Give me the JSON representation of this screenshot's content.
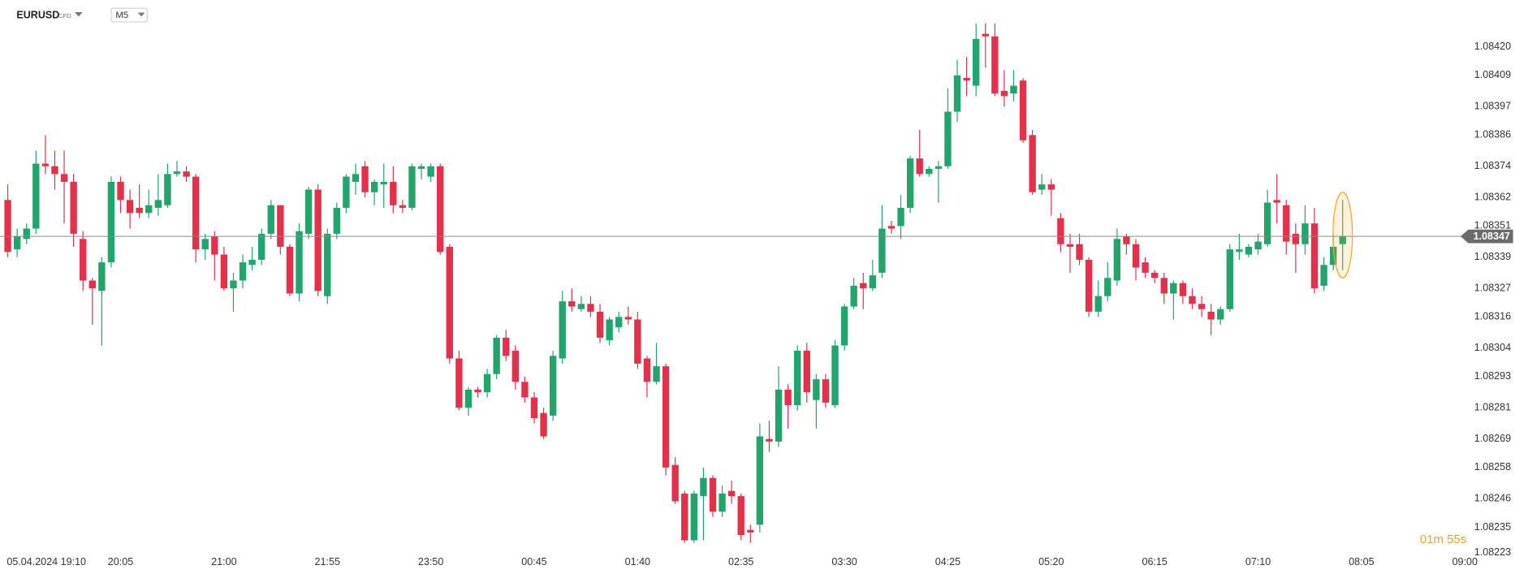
{
  "chart_data": {
    "type": "candlestick",
    "symbol": "EURUSD",
    "instrument_type": "CFD",
    "timeframe": "M5",
    "countdown": "01m 55s",
    "current_price": 1.08347,
    "up_color": "#22a56d",
    "down_color": "#e5304b",
    "ylim": [
      1.08223,
      1.08438
    ],
    "yticks": [
      {
        "value": 1.0842,
        "label": "1.08420"
      },
      1.08409,
      1.08397,
      1.08386,
      1.08374,
      1.08362,
      1.08351,
      1.08339,
      1.08327,
      1.08316,
      1.08304,
      1.08293,
      1.08281,
      1.08269,
      1.08258,
      1.08246,
      1.08235,
      1.08223
    ],
    "categories": [
      null,
      "05.04.2024 19:10",
      null,
      null,
      null,
      null,
      null,
      null,
      null,
      null,
      null,
      null,
      "20:05",
      null,
      null,
      null,
      null,
      null,
      null,
      null,
      null,
      null,
      null,
      "21:00",
      null,
      null,
      null,
      null,
      null,
      null,
      null,
      null,
      null,
      null,
      "21:55",
      null,
      null,
      null,
      null,
      null,
      null,
      null,
      null,
      null,
      null,
      "23:50",
      null,
      null,
      null,
      null,
      null,
      null,
      null,
      null,
      null,
      null,
      "00:45",
      null,
      null,
      null,
      null,
      null,
      null,
      null,
      null,
      null,
      null,
      "01:40",
      null,
      null,
      null,
      null,
      null,
      null,
      null,
      null,
      null,
      null,
      "02:35",
      null,
      null,
      null,
      null,
      null,
      null,
      null,
      null,
      null,
      null,
      "03:30",
      null,
      null,
      null,
      null,
      null,
      null,
      null,
      null,
      null,
      null,
      "04:25",
      null,
      null,
      null,
      null,
      null,
      null,
      null,
      null,
      null,
      null,
      "05:20",
      null,
      null,
      null,
      null,
      null,
      null,
      null,
      null,
      null,
      null,
      "06:15",
      null,
      null,
      null,
      null,
      null,
      null,
      null,
      null,
      null,
      null,
      "07:10",
      null,
      null,
      null,
      null,
      null,
      null,
      null,
      null,
      null,
      null,
      "08:05",
      null,
      null,
      null,
      null,
      null,
      null,
      null,
      null,
      null,
      null,
      "09:00"
    ],
    "open": [
      1.08361,
      1.08342,
      1.08346,
      1.0835,
      1.08375,
      1.08374,
      1.08371,
      1.08368,
      1.08346,
      1.0833,
      1.08326,
      1.08337,
      1.08368,
      1.08361,
      1.08358,
      1.08356,
      1.08358,
      1.08359,
      1.08371,
      1.08372,
      1.0837,
      1.08342,
      1.08347,
      1.0834,
      1.08327,
      1.0833,
      1.08336,
      1.08338,
      1.08348,
      1.08359,
      1.08343,
      1.08325,
      1.08348,
      1.08365,
      1.08324,
      1.08348,
      1.08358,
      1.08368,
      1.08374,
      1.08364,
      1.08367,
      1.08368,
      1.08359,
      1.08358,
      1.08373,
      1.0837,
      1.08374,
      1.08343,
      1.083,
      1.08281,
      1.08288,
      1.08287,
      1.08294,
      1.08308,
      1.08303,
      1.08291,
      1.08285,
      1.08279,
      1.08278,
      1.083,
      1.08322,
      1.08319,
      1.08321,
      1.08318,
      1.08307,
      1.08312,
      1.08316,
      1.08315,
      1.083,
      1.08291,
      1.08297,
      1.08259,
      1.08248,
      1.0823,
      1.08247,
      1.08254,
      1.08241,
      1.08249,
      1.08247,
      1.08234,
      1.08236,
      1.08269,
      1.08268,
      1.08288,
      1.08282,
      1.08303,
      1.08284,
      1.08292,
      1.08282,
      1.08305,
      1.0832,
      1.08329,
      1.08327,
      1.08333,
      1.08351,
      1.08351,
      1.08358,
      1.08377,
      1.08371,
      1.08373,
      1.08374,
      1.08395,
      1.08408,
      1.08405,
      1.08425,
      1.08424,
      1.08403,
      1.08402,
      1.08407,
      1.08386,
      1.08365,
      1.08367,
      1.08354,
      1.08344,
      1.08344,
      1.08338,
      1.08318,
      1.08324,
      1.0833,
      1.08347,
      1.08344,
      1.08337,
      1.08333,
      1.08331,
      1.08325,
      1.08329,
      1.08324,
      1.08321,
      1.08318,
      1.08315,
      1.08319,
      1.08341,
      1.0834,
      1.08342,
      1.08344,
      1.08361,
      1.08359,
      1.08348,
      1.08344,
      1.08352,
      1.08328,
      1.08336,
      1.08344,
      null,
      null,
      null,
      null,
      null,
      null,
      null,
      null,
      null,
      null,
      null,
      null,
      null
    ],
    "high": [
      1.08367,
      1.0835,
      1.08352,
      1.0838,
      1.08386,
      1.0838,
      1.0838,
      1.08371,
      1.08349,
      1.08331,
      1.08339,
      1.0837,
      1.0837,
      1.08365,
      1.08367,
      1.08365,
      1.08371,
      1.08375,
      1.08376,
      1.08374,
      1.08371,
      1.08348,
      1.08349,
      1.08343,
      1.08333,
      1.0834,
      1.08343,
      1.0835,
      1.08361,
      1.08359,
      1.08344,
      1.08352,
      1.08366,
      1.08367,
      1.0835,
      1.0836,
      1.08371,
      1.08375,
      1.08376,
      1.08369,
      1.08375,
      1.08374,
      1.08361,
      1.08375,
      1.08375,
      1.08375,
      1.08375,
      1.08344,
      1.08303,
      1.08289,
      1.08289,
      1.08296,
      1.08309,
      1.08311,
      1.08305,
      1.08293,
      1.08287,
      1.08281,
      1.08303,
      1.08326,
      1.08327,
      1.08324,
      1.08324,
      1.08321,
      1.08316,
      1.08318,
      1.0832,
      1.08318,
      1.08301,
      1.08306,
      1.08298,
      1.08262,
      1.08249,
      1.08249,
      1.08258,
      1.08255,
      1.08251,
      1.08253,
      1.08248,
      1.08236,
      1.08275,
      1.08276,
      1.08297,
      1.0829,
      1.08305,
      1.08306,
      1.08294,
      1.08294,
      1.08307,
      1.08321,
      1.08331,
      1.08333,
      1.08338,
      1.08359,
      1.08353,
      1.08363,
      1.08378,
      1.08388,
      1.08374,
      1.08376,
      1.08404,
      1.08415,
      1.08416,
      1.08429,
      1.08429,
      1.08429,
      1.08411,
      1.08411,
      1.08408,
      1.08388,
      1.08371,
      1.08369,
      1.08356,
      1.08348,
      1.08348,
      1.08339,
      1.0833,
      1.08337,
      1.0835,
      1.08348,
      1.08346,
      1.08339,
      1.08334,
      1.08333,
      1.0833,
      1.0833,
      1.08327,
      1.08324,
      1.08321,
      1.0832,
      1.08344,
      1.08348,
      1.08344,
      1.08348,
      1.08365,
      1.08371,
      1.08361,
      1.08352,
      1.08359,
      1.08358,
      1.08339,
      1.08348,
      1.08361,
      null,
      null,
      null,
      null,
      null,
      null,
      null,
      null,
      null,
      null,
      null,
      null,
      null
    ],
    "low": [
      1.08339,
      1.08339,
      1.08344,
      1.08348,
      1.08371,
      1.08365,
      1.08352,
      1.08343,
      1.08326,
      1.08313,
      1.08305,
      1.08335,
      1.08356,
      1.0835,
      1.08354,
      1.08354,
      1.08355,
      1.08358,
      1.0837,
      1.08368,
      1.08337,
      1.08338,
      1.0833,
      1.08326,
      1.08318,
      1.08327,
      1.08334,
      1.08336,
      1.08346,
      1.0834,
      1.08324,
      1.08322,
      1.08346,
      1.08324,
      1.08321,
      1.08346,
      1.08356,
      1.08363,
      1.08362,
      1.08359,
      1.08358,
      1.08356,
      1.08356,
      1.08357,
      1.08369,
      1.08368,
      1.0834,
      1.08298,
      1.0828,
      1.08278,
      1.08285,
      1.08285,
      1.08292,
      1.08299,
      1.08288,
      1.08283,
      1.08275,
      1.08269,
      1.08276,
      1.08298,
      1.08318,
      1.08318,
      1.08316,
      1.08306,
      1.08305,
      1.0831,
      1.08313,
      1.08296,
      1.08285,
      1.0829,
      1.08255,
      1.08244,
      1.08229,
      1.08229,
      1.0823,
      1.08239,
      1.08239,
      1.08244,
      1.0823,
      1.08229,
      1.08233,
      1.08264,
      1.08266,
      1.08273,
      1.0828,
      1.08283,
      1.08273,
      1.08281,
      1.08281,
      1.08303,
      1.08319,
      1.08319,
      1.08326,
      1.08331,
      1.08348,
      1.08346,
      1.08356,
      1.0837,
      1.0837,
      1.0836,
      1.08373,
      1.08391,
      1.08401,
      1.08401,
      1.08412,
      1.08401,
      1.08397,
      1.08399,
      1.08383,
      1.08363,
      1.08363,
      1.08355,
      1.08341,
      1.08333,
      1.08336,
      1.08316,
      1.08316,
      1.08322,
      1.08328,
      1.0834,
      1.0833,
      1.08331,
      1.08329,
      1.08321,
      1.08315,
      1.08321,
      1.08319,
      1.08316,
      1.08309,
      1.08313,
      1.08318,
      1.08338,
      1.08339,
      1.0834,
      1.08343,
      1.08352,
      1.0834,
      1.08333,
      1.0834,
      1.08325,
      1.08326,
      1.08334,
      1.08334,
      null,
      null,
      null,
      null,
      null,
      null,
      null,
      null,
      null,
      null,
      null,
      null,
      null
    ],
    "close": [
      1.08341,
      1.08347,
      1.0835,
      1.08375,
      1.08374,
      1.08371,
      1.08368,
      1.08348,
      1.0833,
      1.08327,
      1.08337,
      1.08368,
      1.08361,
      1.08356,
      1.08356,
      1.08359,
      1.08361,
      1.08371,
      1.08372,
      1.0837,
      1.08342,
      1.08346,
      1.0834,
      1.08327,
      1.0833,
      1.08337,
      1.08338,
      1.08348,
      1.08359,
      1.08343,
      1.08325,
      1.08349,
      1.08365,
      1.08326,
      1.08348,
      1.08358,
      1.0837,
      1.08371,
      1.08364,
      1.08368,
      1.08368,
      1.08359,
      1.08358,
      1.08374,
      1.08374,
      1.08374,
      1.08341,
      1.083,
      1.08281,
      1.08288,
      1.08287,
      1.08294,
      1.08308,
      1.08301,
      1.08291,
      1.08285,
      1.08277,
      1.0827,
      1.08301,
      1.08322,
      1.0832,
      1.08321,
      1.08318,
      1.08308,
      1.08315,
      1.08316,
      1.08315,
      1.08298,
      1.08291,
      1.08297,
      1.08258,
      1.08245,
      1.0823,
      1.08248,
      1.08254,
      1.08241,
      1.08248,
      1.08247,
      1.08232,
      1.08233,
      1.0827,
      1.08268,
      1.08288,
      1.08282,
      1.08303,
      1.08287,
      1.08292,
      1.08283,
      1.08305,
      1.0832,
      1.08328,
      1.08327,
      1.08332,
      1.0835,
      1.0835,
      1.08358,
      1.08377,
      1.08371,
      1.08373,
      1.08374,
      1.08395,
      1.08409,
      1.08407,
      1.08423,
      1.08424,
      1.08402,
      1.08401,
      1.08405,
      1.08384,
      1.08364,
      1.08367,
      1.08365,
      1.08344,
      1.08343,
      1.08338,
      1.08318,
      1.08324,
      1.08331,
      1.08346,
      1.08344,
      1.08335,
      1.08333,
      1.08331,
      1.08325,
      1.08329,
      1.08324,
      1.08321,
      1.08319,
      1.08315,
      1.08319,
      1.08342,
      1.08342,
      1.08343,
      1.08345,
      1.0836,
      1.0836,
      1.08345,
      1.08344,
      1.08352,
      1.08327,
      1.08336,
      1.08343,
      1.08347,
      null,
      null,
      null,
      null,
      null,
      null,
      null,
      null,
      null,
      null,
      null,
      null,
      null
    ]
  }
}
